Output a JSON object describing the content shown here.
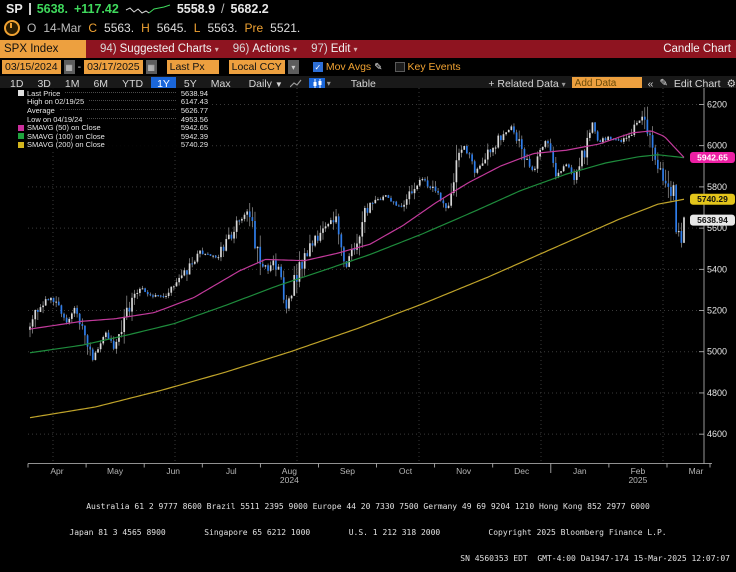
{
  "icons": {
    "dropdown": "▾",
    "dropdown_big": "▼",
    "collapse": "«",
    "gear": "⚙",
    "pencil": "✎",
    "plus_related": "+ Related Data",
    "calendar": "▦",
    "check": "✓",
    "dash": "-",
    "slash": "/"
  },
  "ticker": {
    "symbol": "SP",
    "last": "5638.",
    "change": "+117.42",
    "range_low": "5558.9",
    "range_high": "5682.2",
    "open_label": "O",
    "date": "14-Mar",
    "stats": [
      {
        "label": "C",
        "value": "5563."
      },
      {
        "label": "H",
        "value": "5645."
      },
      {
        "label": "L",
        "value": "5563."
      },
      {
        "label": "Pre",
        "value": "5521."
      }
    ]
  },
  "menu_bar": {
    "security": "SPX Index",
    "items": [
      {
        "num": "94)",
        "label": "Suggested Charts"
      },
      {
        "num": "96)",
        "label": "Actions"
      },
      {
        "num": "97)",
        "label": "Edit"
      }
    ],
    "right_label": "Candle Chart"
  },
  "settings_bar": {
    "date_from": "03/15/2024",
    "date_to": "03/17/2025",
    "price_field": "Last Px",
    "currency": "Local CCY",
    "mov_avgs_label": "Mov Avgs",
    "key_events_label": "Key Events"
  },
  "toolbar": {
    "ranges": [
      "1D",
      "3D",
      "1M",
      "6M",
      "YTD",
      "1Y",
      "5Y",
      "Max"
    ],
    "active_range": "1Y",
    "frequency": "Daily",
    "table_label": "Table",
    "add_data_placeholder": "Add Data",
    "edit_chart_label": "Edit Chart"
  },
  "legend": {
    "rows": [
      {
        "marker": "#e0e0e0",
        "label": "Last Price",
        "value": "5638.94",
        "leader": true
      },
      {
        "marker": null,
        "label": "High on 02/19/25",
        "value": "6147.43",
        "leader": true
      },
      {
        "marker": null,
        "label": "Average",
        "value": "5626.77",
        "leader": true
      },
      {
        "marker": null,
        "label": "Low on 04/19/24",
        "value": "4953.56",
        "leader": true
      },
      {
        "marker": "#cb2f9d",
        "label": "SMAVG (50)  on Close",
        "value": "5942.65",
        "leader": false
      },
      {
        "marker": "#1fa23d",
        "label": "SMAVG (100)  on Close",
        "value": "5942.39",
        "leader": false
      },
      {
        "marker": "#d3b51e",
        "label": "SMAVG (200)  on Close",
        "value": "5740.29",
        "leader": false
      }
    ]
  },
  "chart_data": {
    "type": "candlestick",
    "instrument": "SPX Index",
    "period": "03/15/2024 - 03/17/2025",
    "frequency": "Daily",
    "ylim": [
      4460,
      6280
    ],
    "y_ticks": [
      4600,
      4800,
      5000,
      5200,
      5400,
      5600,
      5800,
      6000,
      6200
    ],
    "x_labels": [
      "Apr",
      "May",
      "Jun",
      "Jul",
      "Aug",
      "Sep",
      "Oct",
      "Nov",
      "Dec",
      "Jan",
      "Feb",
      "Mar"
    ],
    "year_labels": [
      {
        "label": "2024",
        "month_index": 4
      },
      {
        "label": "2025",
        "month_index": 10
      }
    ],
    "last_price": 5638.94,
    "high": {
      "date": "02/19/25",
      "value": 6147.43
    },
    "low": {
      "date": "04/19/24",
      "value": 4953.56
    },
    "average": 5626.77,
    "price_trajectory": [
      [
        0.0,
        5117
      ],
      [
        0.016,
        5241
      ],
      [
        0.036,
        5254
      ],
      [
        0.056,
        5147
      ],
      [
        0.068,
        5209
      ],
      [
        0.08,
        5123
      ],
      [
        0.096,
        4967
      ],
      [
        0.116,
        5100
      ],
      [
        0.127,
        5018
      ],
      [
        0.147,
        5188
      ],
      [
        0.167,
        5308
      ],
      [
        0.191,
        5268
      ],
      [
        0.21,
        5278
      ],
      [
        0.231,
        5347
      ],
      [
        0.259,
        5487
      ],
      [
        0.287,
        5460
      ],
      [
        0.319,
        5634
      ],
      [
        0.335,
        5667
      ],
      [
        0.347,
        5505
      ],
      [
        0.363,
        5399
      ],
      [
        0.382,
        5446
      ],
      [
        0.39,
        5186
      ],
      [
        0.414,
        5434
      ],
      [
        0.442,
        5570
      ],
      [
        0.466,
        5648
      ],
      [
        0.482,
        5408
      ],
      [
        0.518,
        5713
      ],
      [
        0.546,
        5762
      ],
      [
        0.566,
        5696
      ],
      [
        0.598,
        5841
      ],
      [
        0.614,
        5797
      ],
      [
        0.637,
        5705
      ],
      [
        0.653,
        5929
      ],
      [
        0.665,
        6001
      ],
      [
        0.681,
        5871
      ],
      [
        0.717,
        6032
      ],
      [
        0.737,
        6090
      ],
      [
        0.769,
        5872
      ],
      [
        0.789,
        6038
      ],
      [
        0.805,
        5869
      ],
      [
        0.821,
        5918
      ],
      [
        0.833,
        5836
      ],
      [
        0.861,
        6119
      ],
      [
        0.869,
        6012
      ],
      [
        0.884,
        6041
      ],
      [
        0.904,
        6026
      ],
      [
        0.916,
        6052
      ],
      [
        0.936,
        6144
      ],
      [
        0.96,
        5862
      ],
      [
        0.976,
        5843
      ],
      [
        0.984,
        5770
      ],
      [
        0.988,
        5615
      ],
      [
        0.992,
        5572
      ],
      [
        0.996,
        5521
      ],
      [
        1.0,
        5639
      ]
    ],
    "sma50": [
      [
        0,
        5110
      ],
      [
        0.08,
        5148
      ],
      [
        0.13,
        5160
      ],
      [
        0.19,
        5190
      ],
      [
        0.25,
        5262
      ],
      [
        0.32,
        5392
      ],
      [
        0.36,
        5448
      ],
      [
        0.42,
        5442
      ],
      [
        0.47,
        5478
      ],
      [
        0.52,
        5522
      ],
      [
        0.57,
        5612
      ],
      [
        0.62,
        5722
      ],
      [
        0.67,
        5820
      ],
      [
        0.72,
        5902
      ],
      [
        0.77,
        5962
      ],
      [
        0.82,
        5978
      ],
      [
        0.87,
        6008
      ],
      [
        0.92,
        6062
      ],
      [
        0.95,
        6072
      ],
      [
        0.97,
        6045
      ],
      [
        1,
        5943
      ]
    ],
    "sma100": [
      [
        0,
        4995
      ],
      [
        0.08,
        5032
      ],
      [
        0.15,
        5082
      ],
      [
        0.22,
        5136
      ],
      [
        0.3,
        5226
      ],
      [
        0.38,
        5322
      ],
      [
        0.45,
        5396
      ],
      [
        0.52,
        5472
      ],
      [
        0.6,
        5572
      ],
      [
        0.68,
        5682
      ],
      [
        0.75,
        5782
      ],
      [
        0.82,
        5862
      ],
      [
        0.88,
        5916
      ],
      [
        0.93,
        5946
      ],
      [
        0.96,
        5956
      ],
      [
        1,
        5942
      ]
    ],
    "sma200": [
      [
        0,
        4680
      ],
      [
        0.1,
        4732
      ],
      [
        0.2,
        4812
      ],
      [
        0.3,
        4902
      ],
      [
        0.4,
        5002
      ],
      [
        0.5,
        5112
      ],
      [
        0.6,
        5232
      ],
      [
        0.7,
        5362
      ],
      [
        0.8,
        5502
      ],
      [
        0.9,
        5642
      ],
      [
        0.96,
        5716
      ],
      [
        1,
        5740
      ]
    ],
    "price_badges": [
      {
        "text": "5942.65",
        "bg": "#ed1fa4",
        "fg": "#ffffff",
        "v": 5942.65
      },
      {
        "text": "5740.29",
        "bg": "#e3c51b",
        "fg": "#101010",
        "v": 5740.29
      },
      {
        "text": "5638.94",
        "bg": "#e8e8e8",
        "fg": "#101010",
        "v": 5638.94
      }
    ],
    "colors": {
      "up": "#d8d8d8",
      "down": "#2f7dea",
      "wick": "#9a9a9a",
      "sma50": "#c23a9b",
      "sma100": "#1e8b3c",
      "sma200": "#bfa32a",
      "grid": "#3a3a3a",
      "axis": "#c0c0c0",
      "tick_text": "#b5b5b5",
      "axis_text": "#e8e8e8"
    }
  },
  "footer": {
    "line1": "Australia 61 2 9777 8600 Brazil 5511 2395 9000 Europe 44 20 7330 7500 Germany 49 69 9204 1210 Hong Kong 852 2977 6000",
    "line2": "Japan 81 3 4565 8900        Singapore 65 6212 1000        U.S. 1 212 318 2000          Copyright 2025 Bloomberg Finance L.P.",
    "line3": "SN 4560353 EDT  GMT-4:00 Da1947-174 15-Mar-2025 12:07:07"
  }
}
